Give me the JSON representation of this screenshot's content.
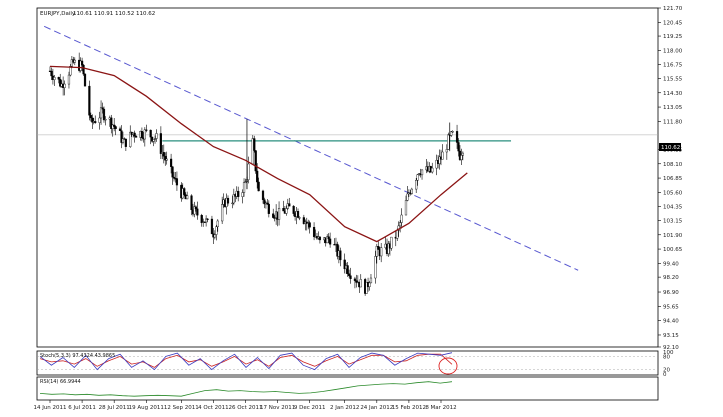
{
  "chart_data": {
    "type": "candlestick",
    "title": "EURJPY,Daily",
    "ohlc_readout": "110.61 110.91 110.52 110.62",
    "current_price": "110.62",
    "ylim": [
      92.1,
      121.7
    ],
    "y_ticks": [
      "121.70",
      "120.45",
      "119.25",
      "118.00",
      "116.75",
      "115.55",
      "114.30",
      "113.05",
      "111.80",
      "110.62",
      "109.35",
      "108.10",
      "106.85",
      "105.60",
      "104.35",
      "103.15",
      "101.90",
      "100.65",
      "99.40",
      "98.20",
      "96.90",
      "95.65",
      "94.40",
      "93.15",
      "92.10"
    ],
    "x_tick_labels": [
      "14 Jun 2011",
      "6 Jul 2011",
      "28 Jul 2011",
      "19 Aug 2011",
      "12 Sep 2011",
      "4 Oct 2011",
      "26 Oct 2011",
      "17 Nov 2011",
      "9 Dec 2011",
      "2 Jan 2012",
      "24 Jan 2012",
      "15 Feb 2012",
      "8 Mar 2012"
    ],
    "close_path": [
      [
        "2011-06-14",
        116.2
      ],
      [
        "2011-06-22",
        115.0
      ],
      [
        "2011-06-30",
        116.9
      ],
      [
        "2011-07-06",
        116.6
      ],
      [
        "2011-07-12",
        111.6
      ],
      [
        "2011-07-20",
        112.6
      ],
      [
        "2011-07-28",
        111.4
      ],
      [
        "2011-08-04",
        109.9
      ],
      [
        "2011-08-10",
        110.8
      ],
      [
        "2011-08-19",
        110.8
      ],
      [
        "2011-08-26",
        110.3
      ],
      [
        "2011-09-06",
        107.0
      ],
      [
        "2011-09-12",
        105.6
      ],
      [
        "2011-09-20",
        104.0
      ],
      [
        "2011-09-28",
        103.2
      ],
      [
        "2011-10-04",
        102.1
      ],
      [
        "2011-10-12",
        104.8
      ],
      [
        "2011-10-20",
        105.2
      ],
      [
        "2011-10-26",
        106.4
      ],
      [
        "2011-10-31",
        109.9
      ],
      [
        "2011-11-04",
        105.6
      ],
      [
        "2011-11-10",
        104.4
      ],
      [
        "2011-11-17",
        103.6
      ],
      [
        "2011-11-25",
        104.2
      ],
      [
        "2011-12-02",
        103.8
      ],
      [
        "2011-12-09",
        102.6
      ],
      [
        "2011-12-16",
        101.2
      ],
      [
        "2011-12-23",
        101.6
      ],
      [
        "2011-12-30",
        99.8
      ],
      [
        "2012-01-06",
        98.6
      ],
      [
        "2012-01-13",
        97.6
      ],
      [
        "2012-01-17",
        97.2
      ],
      [
        "2012-01-24",
        100.4
      ],
      [
        "2012-01-31",
        100.6
      ],
      [
        "2012-02-07",
        102.0
      ],
      [
        "2012-02-15",
        105.6
      ],
      [
        "2012-02-22",
        107.6
      ],
      [
        "2012-03-01",
        107.4
      ],
      [
        "2012-03-08",
        108.6
      ],
      [
        "2012-03-13",
        110.1
      ],
      [
        "2012-03-16",
        110.6
      ],
      [
        "2012-03-21",
        108.9
      ],
      [
        "2012-03-26",
        110.6
      ]
    ],
    "ma_path": [
      [
        "2011-06-14",
        116.6
      ],
      [
        "2011-07-06",
        116.5
      ],
      [
        "2011-07-28",
        115.8
      ],
      [
        "2011-08-19",
        114.0
      ],
      [
        "2011-09-12",
        111.6
      ],
      [
        "2011-10-04",
        109.6
      ],
      [
        "2011-10-26",
        108.4
      ],
      [
        "2011-11-17",
        106.8
      ],
      [
        "2011-12-09",
        105.4
      ],
      [
        "2012-01-02",
        102.6
      ],
      [
        "2012-01-24",
        101.3
      ],
      [
        "2012-02-15",
        102.9
      ],
      [
        "2012-03-08",
        105.4
      ],
      [
        "2012-03-26",
        107.3
      ]
    ],
    "trendline": [
      [
        "2011-06-10",
        120.1
      ],
      [
        "2012-06-10",
        98.8
      ]
    ],
    "resistance_level": 110.1,
    "resistance_range": [
      "2011-08-30",
      "2012-04-25"
    ],
    "indicators": [
      {
        "name": "Stoch",
        "label": "Stoch(5,3,3) 97.4324 43.9865",
        "levels": [
          "100",
          "80",
          "20",
          "0"
        ],
        "k": [
          80,
          40,
          75,
          30,
          85,
          20,
          70,
          90,
          30,
          60,
          20,
          80,
          95,
          40,
          70,
          20,
          60,
          90,
          30,
          75,
          25,
          85,
          95,
          40,
          20,
          70,
          90,
          30,
          75,
          95,
          85,
          40,
          70,
          95,
          90,
          85,
          97
        ],
        "d": [
          70,
          55,
          60,
          45,
          70,
          35,
          60,
          80,
          45,
          55,
          30,
          70,
          85,
          55,
          65,
          35,
          55,
          80,
          45,
          65,
          35,
          75,
          85,
          55,
          35,
          60,
          80,
          45,
          65,
          85,
          85,
          55,
          60,
          85,
          90,
          90,
          44
        ]
      },
      {
        "name": "RSI",
        "label": "RSI(14) 66.9944",
        "values": [
          42,
          40,
          41,
          39,
          40,
          38,
          39,
          37,
          36,
          37,
          38,
          37,
          36,
          42,
          48,
          50,
          47,
          48,
          46,
          45,
          46,
          44,
          42,
          43,
          46,
          50,
          54,
          58,
          60,
          62,
          63,
          62,
          65,
          67,
          64,
          67
        ]
      }
    ],
    "colors": {
      "candles": "#000000",
      "ma": "#8b1414",
      "trendline": "#5858d0",
      "resistance": "#2a8f7f",
      "stoch_k": "#3c3cc0",
      "stoch_d": "#cc2222",
      "rsi": "#2a8a2a",
      "annotation": "#dd2222"
    }
  }
}
